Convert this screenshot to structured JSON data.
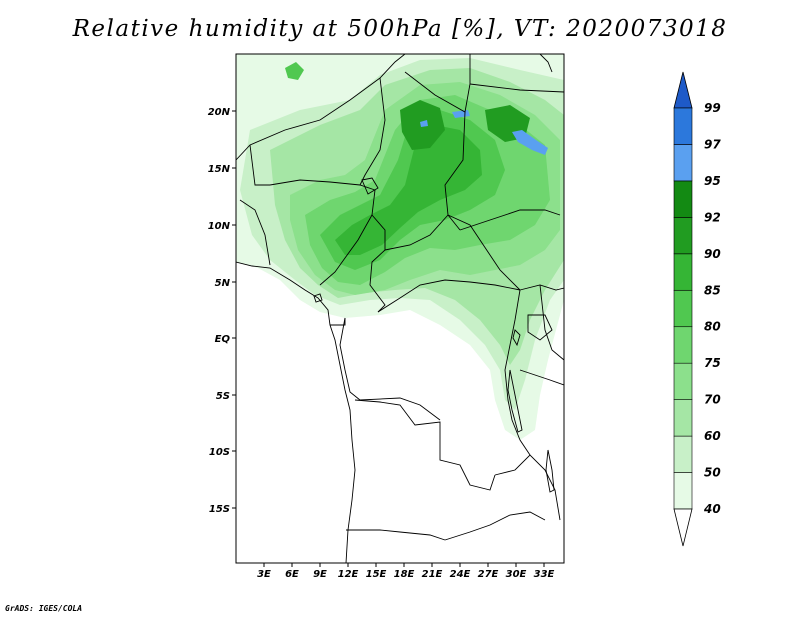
{
  "title": "Relative humidity at 500hPa [%], VT: 2020073018",
  "credit": "GrADS: IGES/COLA",
  "map": {
    "lat_labels": [
      "20N",
      "15N",
      "10N",
      "5N",
      "EQ",
      "5S",
      "10S",
      "15S"
    ],
    "lon_labels": [
      "3E",
      "6E",
      "9E",
      "12E",
      "15E",
      "18E",
      "21E",
      "24E",
      "27E",
      "30E",
      "33E"
    ]
  },
  "colorbar": {
    "labels": [
      "40",
      "50",
      "60",
      "70",
      "75",
      "80",
      "85",
      "90",
      "92",
      "95",
      "97",
      "99"
    ],
    "colors": [
      "#e6fae6",
      "#c8f0c8",
      "#a5e6a5",
      "#8ce08c",
      "#6fd66f",
      "#50c850",
      "#35b535",
      "#219c21",
      "#138a13",
      "#5aa0f0",
      "#2c78dc",
      "#1e5ac8"
    ]
  }
}
